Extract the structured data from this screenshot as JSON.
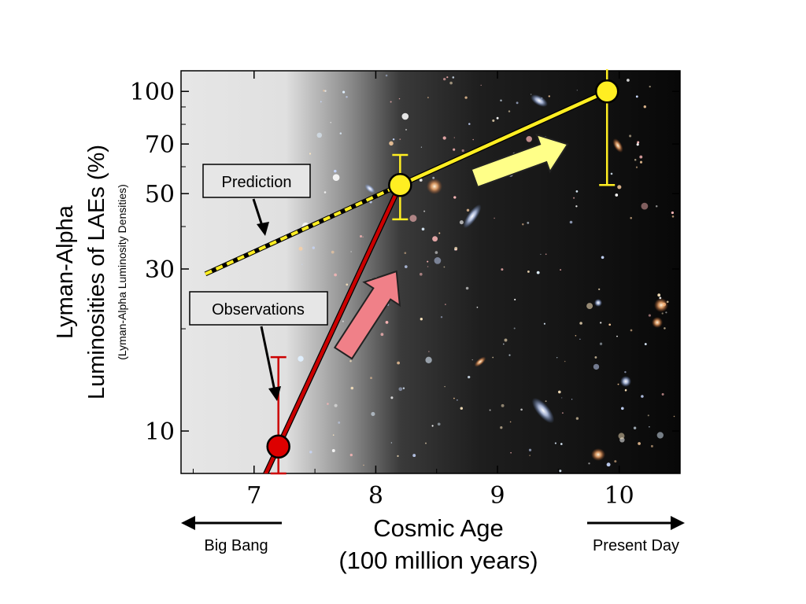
{
  "chart_data": {
    "type": "line",
    "xlabel": "Cosmic Age",
    "xlabel_unit": "(100 million years)",
    "ylabel": "Lyman-Alpha",
    "ylabel_line2": "Luminosities of LAEs (%)",
    "ylabel_sub": "(Lyman-Alpha Luminosity Densities)",
    "y_scale": "log",
    "xlim": [
      6.4,
      10.5
    ],
    "ylim": [
      7.5,
      115
    ],
    "x_ticks": [
      "7",
      "8",
      "9",
      "10"
    ],
    "y_ticks": [
      "10",
      "30",
      "50",
      "70",
      "100"
    ],
    "series": [
      {
        "name": "Observations",
        "color": "#cc0000",
        "points": [
          {
            "x": 7.2,
            "y": 9,
            "err_low": 7.5,
            "err_high": 16.5
          },
          {
            "x": 8.2,
            "y": 53,
            "err_low": 0,
            "err_high": 0
          }
        ]
      },
      {
        "name": "",
        "color": "#ffee22",
        "points": [
          {
            "x": 8.2,
            "y": 53,
            "err_low": 42,
            "err_high": 65
          },
          {
            "x": 9.9,
            "y": 100,
            "err_low": 53,
            "err_high": 118
          }
        ]
      },
      {
        "name": "Prediction",
        "color": "#ffee22",
        "style": "dashed",
        "points": [
          {
            "x": 6.6,
            "y": 29
          },
          {
            "x": 8.2,
            "y": 53
          }
        ]
      }
    ],
    "annotations": {
      "prediction": "Prediction",
      "observations": "Observations",
      "left_arrow": "Big Bang",
      "right_arrow": "Present Day"
    },
    "background": "deep-field galaxy image"
  }
}
